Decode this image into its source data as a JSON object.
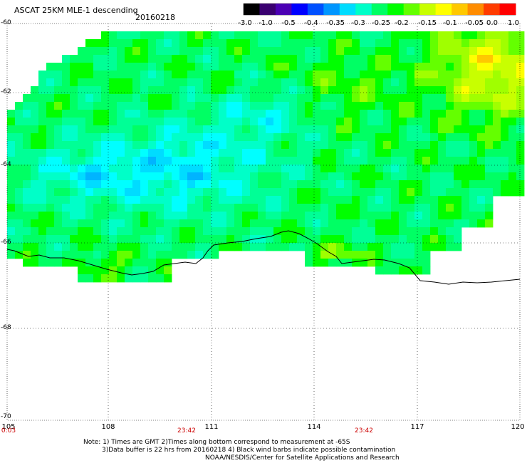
{
  "header": {
    "title": "ASCAT 25KM MLE-1 descending",
    "date": "20160218"
  },
  "colorbar": {
    "ticks": [
      "-3.0",
      "-1.0",
      "-0.5",
      "-0.4",
      "-0.35",
      "-0.3",
      "-0.25",
      "-0.2",
      "-0.15",
      "-0.1",
      "-0.05",
      "0.0",
      "1.0"
    ],
    "colors": [
      "#000000",
      "#3a0070",
      "#4b00b4",
      "#0000ff",
      "#0050ff",
      "#0096ff",
      "#00dcff",
      "#00ffc8",
      "#00ff64",
      "#00ff00",
      "#64ff00",
      "#c8ff00",
      "#ffff00",
      "#ffc800",
      "#ff8c00",
      "#ff3c00",
      "#ff0000"
    ]
  },
  "axes": {
    "lat_labels": [
      "-60",
      "-62",
      "-64",
      "-66",
      "-68",
      "-70"
    ],
    "lon_labels": [
      "105",
      "108",
      "111",
      "114",
      "117",
      "120"
    ],
    "time_labels": [
      "0:03",
      "23:42",
      "23:42"
    ]
  },
  "notes": {
    "line1": "Note: 1) Times are GMT 2)Times along bottom correspond to measurement at -65S",
    "line2": "3)Data buffer is 22 hrs from 20160218 4) Black wind barbs indicate possible contamination",
    "line3": "NOAA/NESDIS/Center for Satellite Applications and Research"
  }
}
